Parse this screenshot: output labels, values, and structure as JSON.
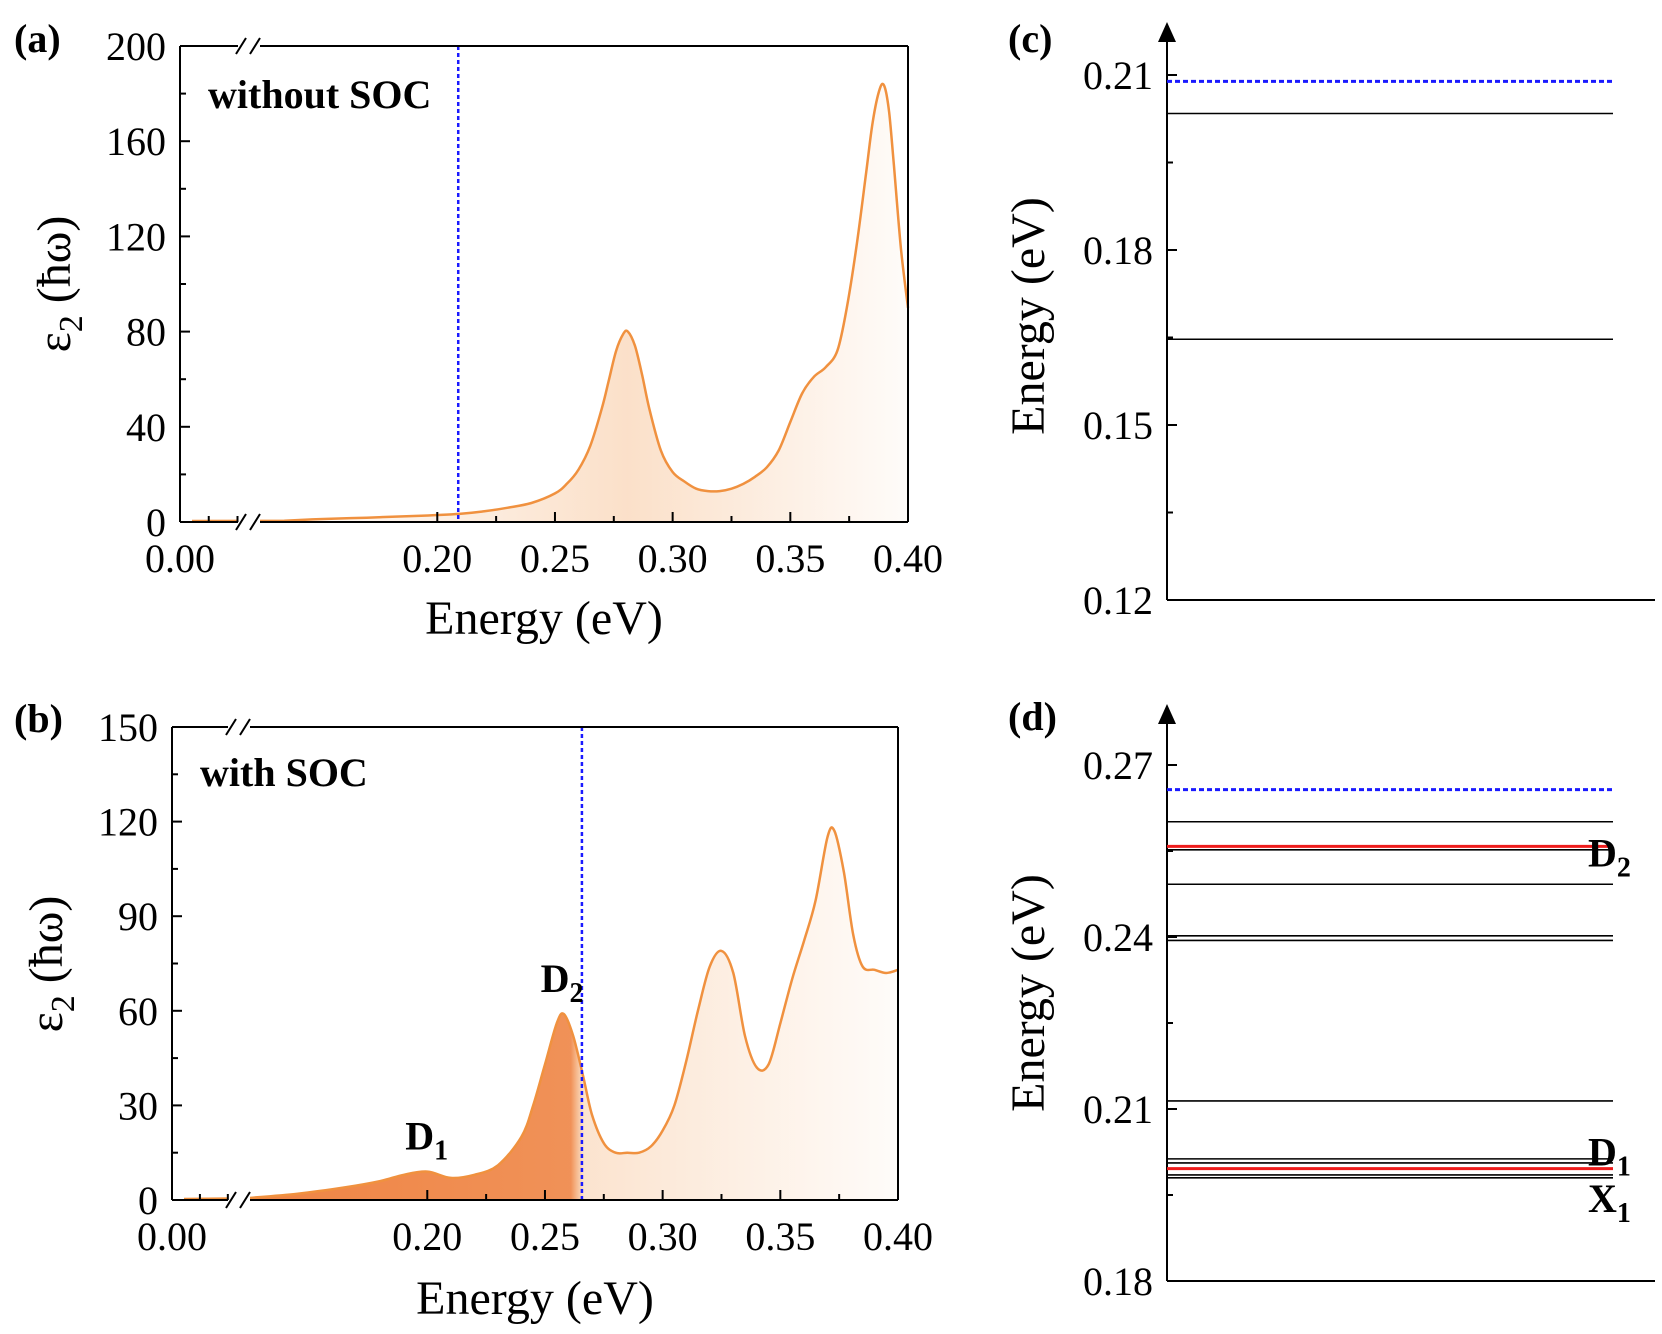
{
  "chart_data": [
    {
      "panel": "(a)",
      "type": "area",
      "annotation": "without SOC",
      "xlabel": "Energy (eV)",
      "ylabel_main": "ε",
      "ylabel_sub": "2",
      "ylabel_tail": "(ħω)",
      "xlim": [
        0.0,
        0.4
      ],
      "ylim": [
        0,
        200
      ],
      "axis_break_x": 0.12,
      "xticks": [
        0.0,
        0.2,
        0.25,
        0.3,
        0.35,
        0.4
      ],
      "xtick_labels": [
        "0.00",
        "0.20",
        "0.25",
        "0.30",
        "0.35",
        "0.40"
      ],
      "yticks": [
        0,
        40,
        80,
        120,
        160,
        200
      ],
      "ytick_labels": [
        "0",
        "40",
        "80",
        "120",
        "160",
        "200"
      ],
      "vline_x": 0.2089,
      "line_color": "#f0913f",
      "vline_color": "#1a1aff",
      "x": [
        0.135,
        0.15,
        0.17,
        0.19,
        0.21,
        0.22,
        0.23,
        0.24,
        0.25,
        0.255,
        0.26,
        0.265,
        0.27,
        0.273,
        0.276,
        0.279,
        0.281,
        0.284,
        0.287,
        0.29,
        0.295,
        0.3,
        0.305,
        0.31,
        0.315,
        0.32,
        0.325,
        0.33,
        0.335,
        0.34,
        0.345,
        0.35,
        0.355,
        0.36,
        0.365,
        0.37,
        0.374,
        0.378,
        0.382,
        0.385,
        0.388,
        0.39,
        0.392,
        0.394,
        0.397,
        0.4
      ],
      "y": [
        0.5,
        1.2,
        1.8,
        2.5,
        3.5,
        4.5,
        6.0,
        8.0,
        12,
        16,
        22,
        32,
        48,
        60,
        72,
        79,
        80,
        74,
        62,
        48,
        30,
        21,
        17,
        14,
        13,
        13,
        14,
        16,
        19,
        23,
        30,
        42,
        54,
        61,
        65,
        72,
        90,
        115,
        145,
        168,
        182,
        183,
        172,
        150,
        115,
        90
      ]
    },
    {
      "panel": "(b)",
      "type": "area",
      "annotation": "with SOC",
      "xlabel": "Energy (eV)",
      "ylabel_main": "ε",
      "ylabel_sub": "2",
      "ylabel_tail": "(ħω)",
      "xlim": [
        0.0,
        0.4
      ],
      "ylim": [
        0,
        150
      ],
      "axis_break_x": 0.12,
      "xticks": [
        0.0,
        0.2,
        0.25,
        0.3,
        0.35,
        0.4
      ],
      "xtick_labels": [
        "0.00",
        "0.20",
        "0.25",
        "0.30",
        "0.35",
        "0.40"
      ],
      "yticks": [
        0,
        30,
        60,
        90,
        120,
        150
      ],
      "ytick_labels": [
        "0",
        "30",
        "60",
        "90",
        "120",
        "150"
      ],
      "vline_x": 0.2657,
      "line_color": "#f0913f",
      "vline_color": "#1a1aff",
      "peaks": [
        {
          "label": "D",
          "sub": "1",
          "x": 0.2,
          "y": 9,
          "color": "#ee1c1c"
        },
        {
          "label": "D",
          "sub": "2",
          "x": 0.2575,
          "y": 59,
          "color": "#ee1c1c"
        }
      ],
      "x": [
        0.122,
        0.145,
        0.165,
        0.18,
        0.19,
        0.2,
        0.21,
        0.22,
        0.23,
        0.24,
        0.245,
        0.25,
        0.255,
        0.258,
        0.262,
        0.266,
        0.27,
        0.275,
        0.28,
        0.285,
        0.29,
        0.295,
        0.3,
        0.305,
        0.31,
        0.315,
        0.32,
        0.325,
        0.33,
        0.335,
        0.34,
        0.345,
        0.35,
        0.355,
        0.36,
        0.365,
        0.37,
        0.373,
        0.377,
        0.381,
        0.385,
        0.39,
        0.395,
        0.4
      ],
      "y": [
        0.5,
        2,
        4,
        6,
        8,
        9,
        7,
        8,
        11,
        20,
        30,
        43,
        56,
        59,
        52,
        40,
        27,
        18,
        15,
        15,
        15,
        17,
        22,
        30,
        44,
        60,
        74,
        79,
        72,
        52,
        42,
        43,
        56,
        70,
        82,
        95,
        115,
        117,
        104,
        84,
        74,
        73,
        72,
        73
      ]
    },
    {
      "panel": "(c)",
      "type": "levels",
      "ylabel": "Energy (eV)",
      "ylim": [
        0.12,
        0.216
      ],
      "yticks": [
        0.12,
        0.15,
        0.18,
        0.21
      ],
      "ytick_labels": [
        "0.12",
        "0.15",
        "0.18",
        "0.21"
      ],
      "levels_black": [
        0.2034,
        0.1647
      ],
      "levels_red": [],
      "dashed_level": 0.2089,
      "labels": []
    },
    {
      "panel": "(d)",
      "type": "levels",
      "ylabel": "Energy (eV)",
      "ylim": [
        0.18,
        0.2775
      ],
      "yticks": [
        0.18,
        0.21,
        0.24,
        0.27
      ],
      "ytick_labels": [
        "0.18",
        "0.21",
        "0.24",
        "0.27"
      ],
      "levels_black": [
        0.2601,
        0.2552,
        0.2492,
        0.2402,
        0.2394,
        0.2114,
        0.2013,
        0.2006,
        0.1985,
        0.198
      ],
      "levels_red": [
        0.2558,
        0.1996
      ],
      "dashed_level": 0.2657,
      "labels": [
        {
          "text": "D",
          "sub": "2",
          "y": 0.2547,
          "color": "#ee1c1c"
        },
        {
          "text": "D",
          "sub": "1",
          "y": 0.2026,
          "color": "#ee1c1c"
        },
        {
          "text": "X",
          "sub": "1",
          "y": 0.1945,
          "color": "#000000"
        }
      ]
    }
  ]
}
